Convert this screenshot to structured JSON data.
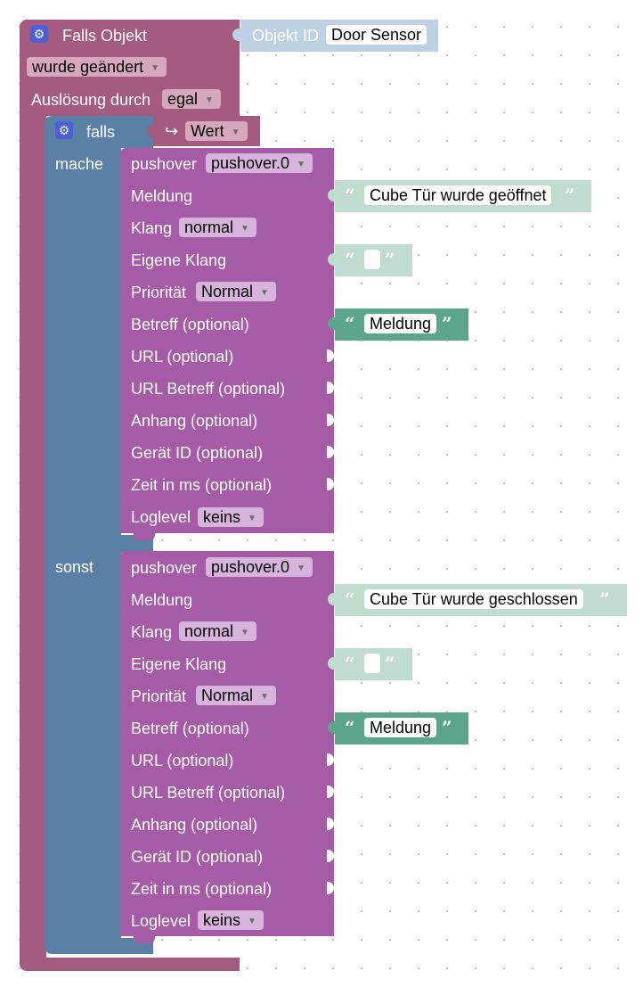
{
  "trigger": {
    "title": "Falls Objekt",
    "object_id_label": "Objekt ID",
    "object_id_value": "Door Sensor",
    "change_mode": "wurde geändert",
    "trigger_by_label": "Auslösung durch",
    "trigger_by_value": "egal"
  },
  "if_block": {
    "if_label": "falls",
    "condition_icon": "return-arrow-icon",
    "condition_value": "Wert",
    "do_label": "mache",
    "else_label": "sonst"
  },
  "pushover_labels": {
    "header": "pushover",
    "message": "Meldung",
    "sound": "Klang",
    "custom_sound": "Eigene Klang",
    "priority": "Priorität",
    "subject": "Betreff (optional)",
    "url": "URL (optional)",
    "url_title": "URL Betreff (optional)",
    "attachment": "Anhang (optional)",
    "device": "Gerät ID (optional)",
    "time": "Zeit in ms (optional)",
    "loglevel": "Loglevel"
  },
  "pushover_then": {
    "instance": "pushover.0",
    "message_text": "Cube Tür wurde geöffnet",
    "sound_value": "normal",
    "custom_sound_text": "",
    "priority_value": "Normal",
    "subject_text": "Meldung",
    "loglevel_value": "keins"
  },
  "pushover_else": {
    "instance": "pushover.0",
    "message_text": "Cube Tür wurde geschlossen",
    "sound_value": "normal",
    "custom_sound_text": "",
    "priority_value": "Normal",
    "subject_text": "Meldung",
    "loglevel_value": "keins"
  },
  "colors": {
    "trigger_block": "#a55b80",
    "logic_block": "#5b80a5",
    "pushover_block": "#a55ba5",
    "text_block_light": "#bfdccf",
    "text_block_dark": "#5ba58c",
    "object_id_block": "#bdd0e4"
  },
  "icons": {
    "gear": "gear-icon",
    "dropdown": "dropdown-arrow-icon",
    "quote_open": "open-quote-icon",
    "quote_close": "close-quote-icon"
  }
}
